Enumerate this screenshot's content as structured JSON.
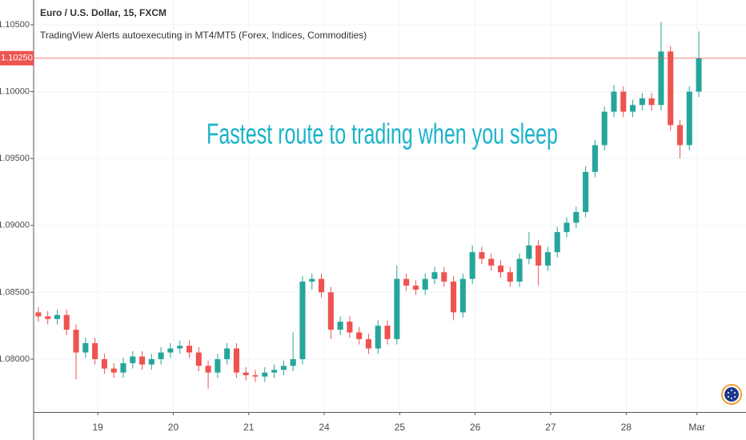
{
  "chart_data": {
    "type": "candlestick",
    "title": "Euro / U.S. Dollar, 15, FXCM",
    "subtitle": "TradingView Alerts autoexecuting in MT4/MT5 (Forex, Indices, Commodities)",
    "annotation": "Fastest route to trading when you sleep",
    "annotation_color": "#1ab3c9",
    "up_color": "#26a69a",
    "down_color": "#ef5350",
    "open": [
      1.0835,
      1.0832,
      1.083,
      1.0833,
      1.0822,
      1.0805,
      1.0812,
      1.08,
      1.0793,
      1.079,
      1.0797,
      1.0802,
      1.0796,
      1.08,
      1.0805,
      1.0808,
      1.081,
      1.0805,
      1.0795,
      1.079,
      1.08,
      1.0808,
      1.079,
      1.0788,
      1.0787,
      1.079,
      1.0792,
      1.0795,
      1.08,
      1.0858,
      1.086,
      1.085,
      1.0822,
      1.0828,
      1.082,
      1.0815,
      1.0808,
      1.0825,
      1.0815,
      1.086,
      1.0855,
      1.0852,
      1.086,
      1.0865,
      1.0858,
      1.0835,
      1.086,
      1.088,
      1.0875,
      1.087,
      1.0865,
      1.0858,
      1.0875,
      1.0885,
      1.087,
      1.088,
      1.0895,
      1.0902,
      1.091,
      1.094,
      1.096,
      1.0985,
      1.1,
      1.0985,
      1.099,
      1.0995,
      1.099,
      1.103,
      1.0975,
      1.096,
      1.1
    ],
    "high": [
      1.0839,
      1.0836,
      1.0837,
      1.0837,
      1.0826,
      1.0816,
      1.0816,
      1.0804,
      1.0797,
      1.0801,
      1.0806,
      1.0806,
      1.0804,
      1.0809,
      1.0812,
      1.0814,
      1.0814,
      1.0809,
      1.0799,
      1.0804,
      1.0812,
      1.0812,
      1.0794,
      1.0792,
      1.0794,
      1.0796,
      1.0799,
      1.082,
      1.0862,
      1.0864,
      1.0864,
      1.0854,
      1.0832,
      1.0832,
      1.0824,
      1.0819,
      1.0829,
      1.0829,
      1.087,
      1.0864,
      1.0859,
      1.0864,
      1.0869,
      1.0869,
      1.0862,
      1.0864,
      1.0885,
      1.0884,
      1.0879,
      1.0874,
      1.0869,
      1.0879,
      1.0895,
      1.0889,
      1.0884,
      1.0899,
      1.0906,
      1.0914,
      1.0944,
      1.0964,
      1.0989,
      1.1005,
      1.1004,
      1.0994,
      1.0999,
      1.0999,
      1.1052,
      1.1034,
      1.0979,
      1.1004,
      1.1045
    ],
    "low": [
      1.0828,
      1.0826,
      1.0826,
      1.0818,
      1.0785,
      1.0801,
      1.0796,
      1.0789,
      1.0786,
      1.0786,
      1.0793,
      1.0792,
      1.0792,
      1.0796,
      1.0801,
      1.0804,
      1.0801,
      1.0791,
      1.0778,
      1.0786,
      1.0796,
      1.0786,
      1.0784,
      1.0783,
      1.0783,
      1.0786,
      1.0788,
      1.0791,
      1.0796,
      1.0852,
      1.0846,
      1.0815,
      1.0818,
      1.0816,
      1.0811,
      1.0804,
      1.0804,
      1.0811,
      1.0811,
      1.0851,
      1.0848,
      1.0848,
      1.0856,
      1.0854,
      1.0829,
      1.0831,
      1.0856,
      1.0871,
      1.0866,
      1.0861,
      1.0854,
      1.0854,
      1.0871,
      1.0855,
      1.0866,
      1.0876,
      1.0891,
      1.0898,
      1.0906,
      1.0936,
      1.0956,
      1.0981,
      1.0981,
      1.0981,
      1.0986,
      1.0986,
      1.0986,
      1.0971,
      1.095,
      1.0956,
      1.0996
    ],
    "close": [
      1.0832,
      1.083,
      1.0833,
      1.0822,
      1.0805,
      1.0812,
      1.08,
      1.0793,
      1.079,
      1.0797,
      1.0802,
      1.0796,
      1.08,
      1.0805,
      1.0808,
      1.081,
      1.0805,
      1.0795,
      1.079,
      1.08,
      1.0808,
      1.079,
      1.0788,
      1.0787,
      1.079,
      1.0792,
      1.0795,
      1.08,
      1.0858,
      1.086,
      1.085,
      1.0822,
      1.0828,
      1.082,
      1.0815,
      1.0808,
      1.0825,
      1.0815,
      1.086,
      1.0855,
      1.0852,
      1.086,
      1.0865,
      1.0858,
      1.0835,
      1.086,
      1.088,
      1.0875,
      1.087,
      1.0865,
      1.0858,
      1.0875,
      1.0885,
      1.087,
      1.088,
      1.0895,
      1.0902,
      1.091,
      1.094,
      1.096,
      1.0985,
      1.1,
      1.0985,
      1.099,
      1.0995,
      1.099,
      1.103,
      1.0975,
      1.096,
      1.1,
      1.1025
    ],
    "xlim": [
      0,
      75.5
    ],
    "xticks": [
      {
        "value": 6.8,
        "label": "19"
      },
      {
        "value": 14.8,
        "label": "20"
      },
      {
        "value": 22.8,
        "label": "21"
      },
      {
        "value": 30.8,
        "label": "24"
      },
      {
        "value": 38.8,
        "label": "25"
      },
      {
        "value": 46.8,
        "label": "26"
      },
      {
        "value": 54.8,
        "label": "27"
      },
      {
        "value": 62.8,
        "label": "28"
      },
      {
        "value": 70.3,
        "label": "Mar"
      }
    ],
    "ylim": [
      1.07605,
      1.10685
    ],
    "yticks": [
      {
        "value": 1.08,
        "label": "1.08000"
      },
      {
        "value": 1.085,
        "label": "1.08500"
      },
      {
        "value": 1.09,
        "label": "1.09000"
      },
      {
        "value": 1.095,
        "label": "1.09500"
      },
      {
        "value": 1.1,
        "label": "1.10000"
      },
      {
        "value": 1.105,
        "label": "1.10500"
      }
    ],
    "price_line": {
      "value": 1.1025,
      "label": "1.10250",
      "color": "#ef5350"
    },
    "grid": true
  }
}
